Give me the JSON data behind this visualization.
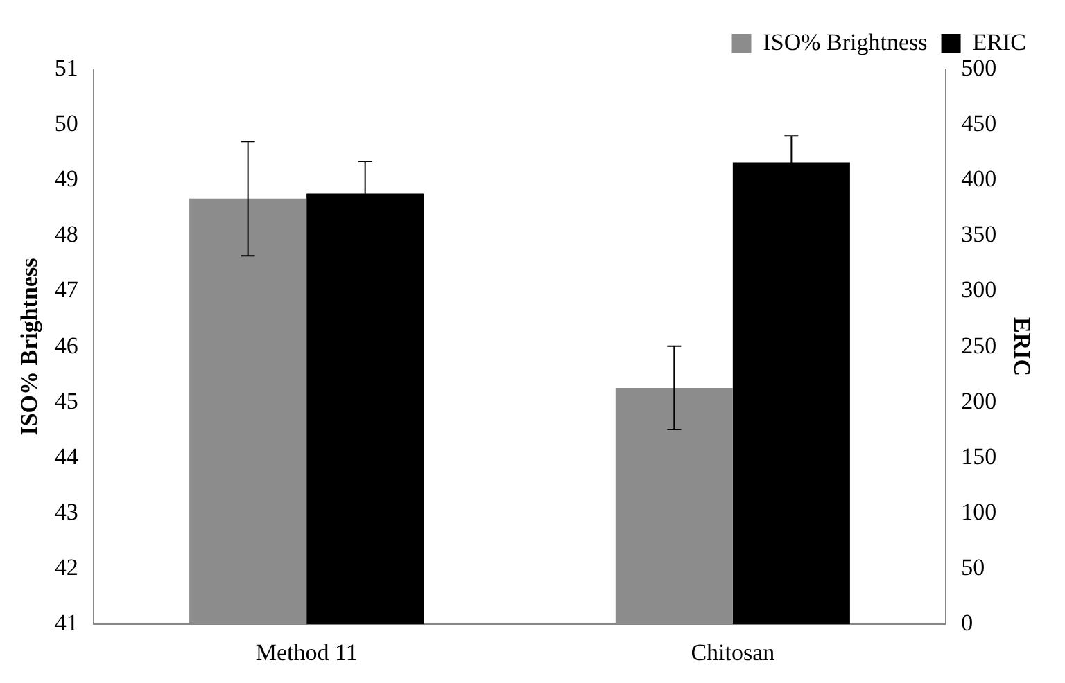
{
  "chart_data": {
    "type": "bar",
    "categories": [
      "Method 11",
      "Chitosan"
    ],
    "ylabel": "ISO% Brightness",
    "y2label": "ERIC",
    "series": [
      {
        "name": "ISO% Brightness",
        "color": "#8c8c8c",
        "values": [
          48.67,
          45.26
        ],
        "errors": [
          1.03,
          0.75
        ]
      },
      {
        "name": "ERIC",
        "color": "#000000",
        "values": [
          388,
          416
        ],
        "errors": [
          29,
          24
        ],
        "axis": "y2"
      }
    ],
    "ylim": [
      41,
      51
    ],
    "yticks": [
      41,
      42,
      43,
      44,
      45,
      46,
      47,
      48,
      49,
      50,
      51
    ],
    "y2lim": [
      0,
      500
    ],
    "y2ticks": [
      0,
      50,
      100,
      150,
      200,
      250,
      300,
      350,
      400,
      450,
      500
    ],
    "legend": "top right",
    "grid": false
  }
}
